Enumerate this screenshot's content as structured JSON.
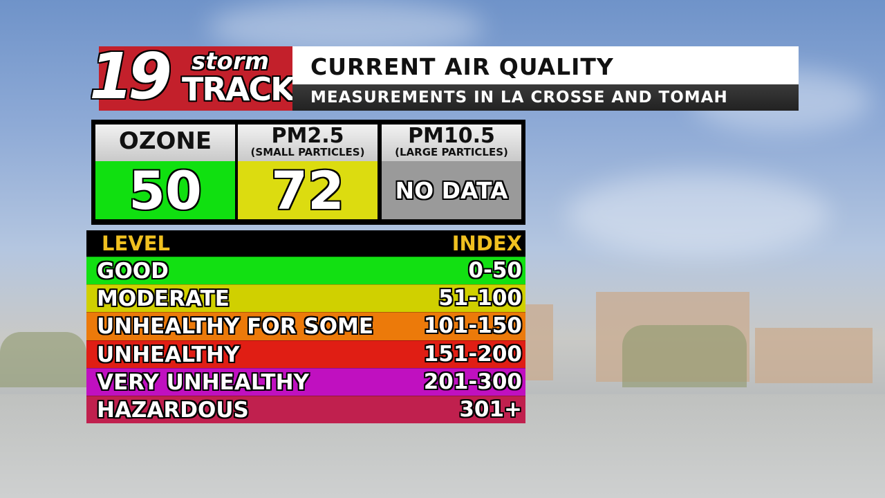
{
  "logo": {
    "number": "19",
    "word1": "storm",
    "word2": "TRACK"
  },
  "header": {
    "title": "CURRENT AIR QUALITY",
    "subtitle": "MEASUREMENTS IN LA CROSSE AND TOMAH"
  },
  "cards": [
    {
      "name": "OZONE",
      "value": 50,
      "color": "#10e010"
    },
    {
      "name": "PM2.5",
      "sub": "(SMALL PARTICLES)",
      "value": 72,
      "color": "#dcdc10"
    },
    {
      "name": "PM10.5",
      "sub": "(LARGE PARTICLES)",
      "value": "NO DATA",
      "color": "#9a9a9a"
    }
  ],
  "table": {
    "header": [
      "LEVEL",
      "INDEX"
    ],
    "rows": [
      {
        "level": "GOOD",
        "index": "0-50",
        "color": "#12e012"
      },
      {
        "level": "MODERATE",
        "index": "51-100",
        "color": "#d0d000"
      },
      {
        "level": "UNHEALTHY FOR SOME",
        "index": "101-150",
        "color": "#ec7a0a"
      },
      {
        "level": "UNHEALTHY",
        "index": "151-200",
        "color": "#e01e14"
      },
      {
        "level": "VERY UNHEALTHY",
        "index": "201-300",
        "color": "#c010c0"
      },
      {
        "level": "HAZARDOUS",
        "index": "301+",
        "color": "#c0204e"
      }
    ]
  }
}
